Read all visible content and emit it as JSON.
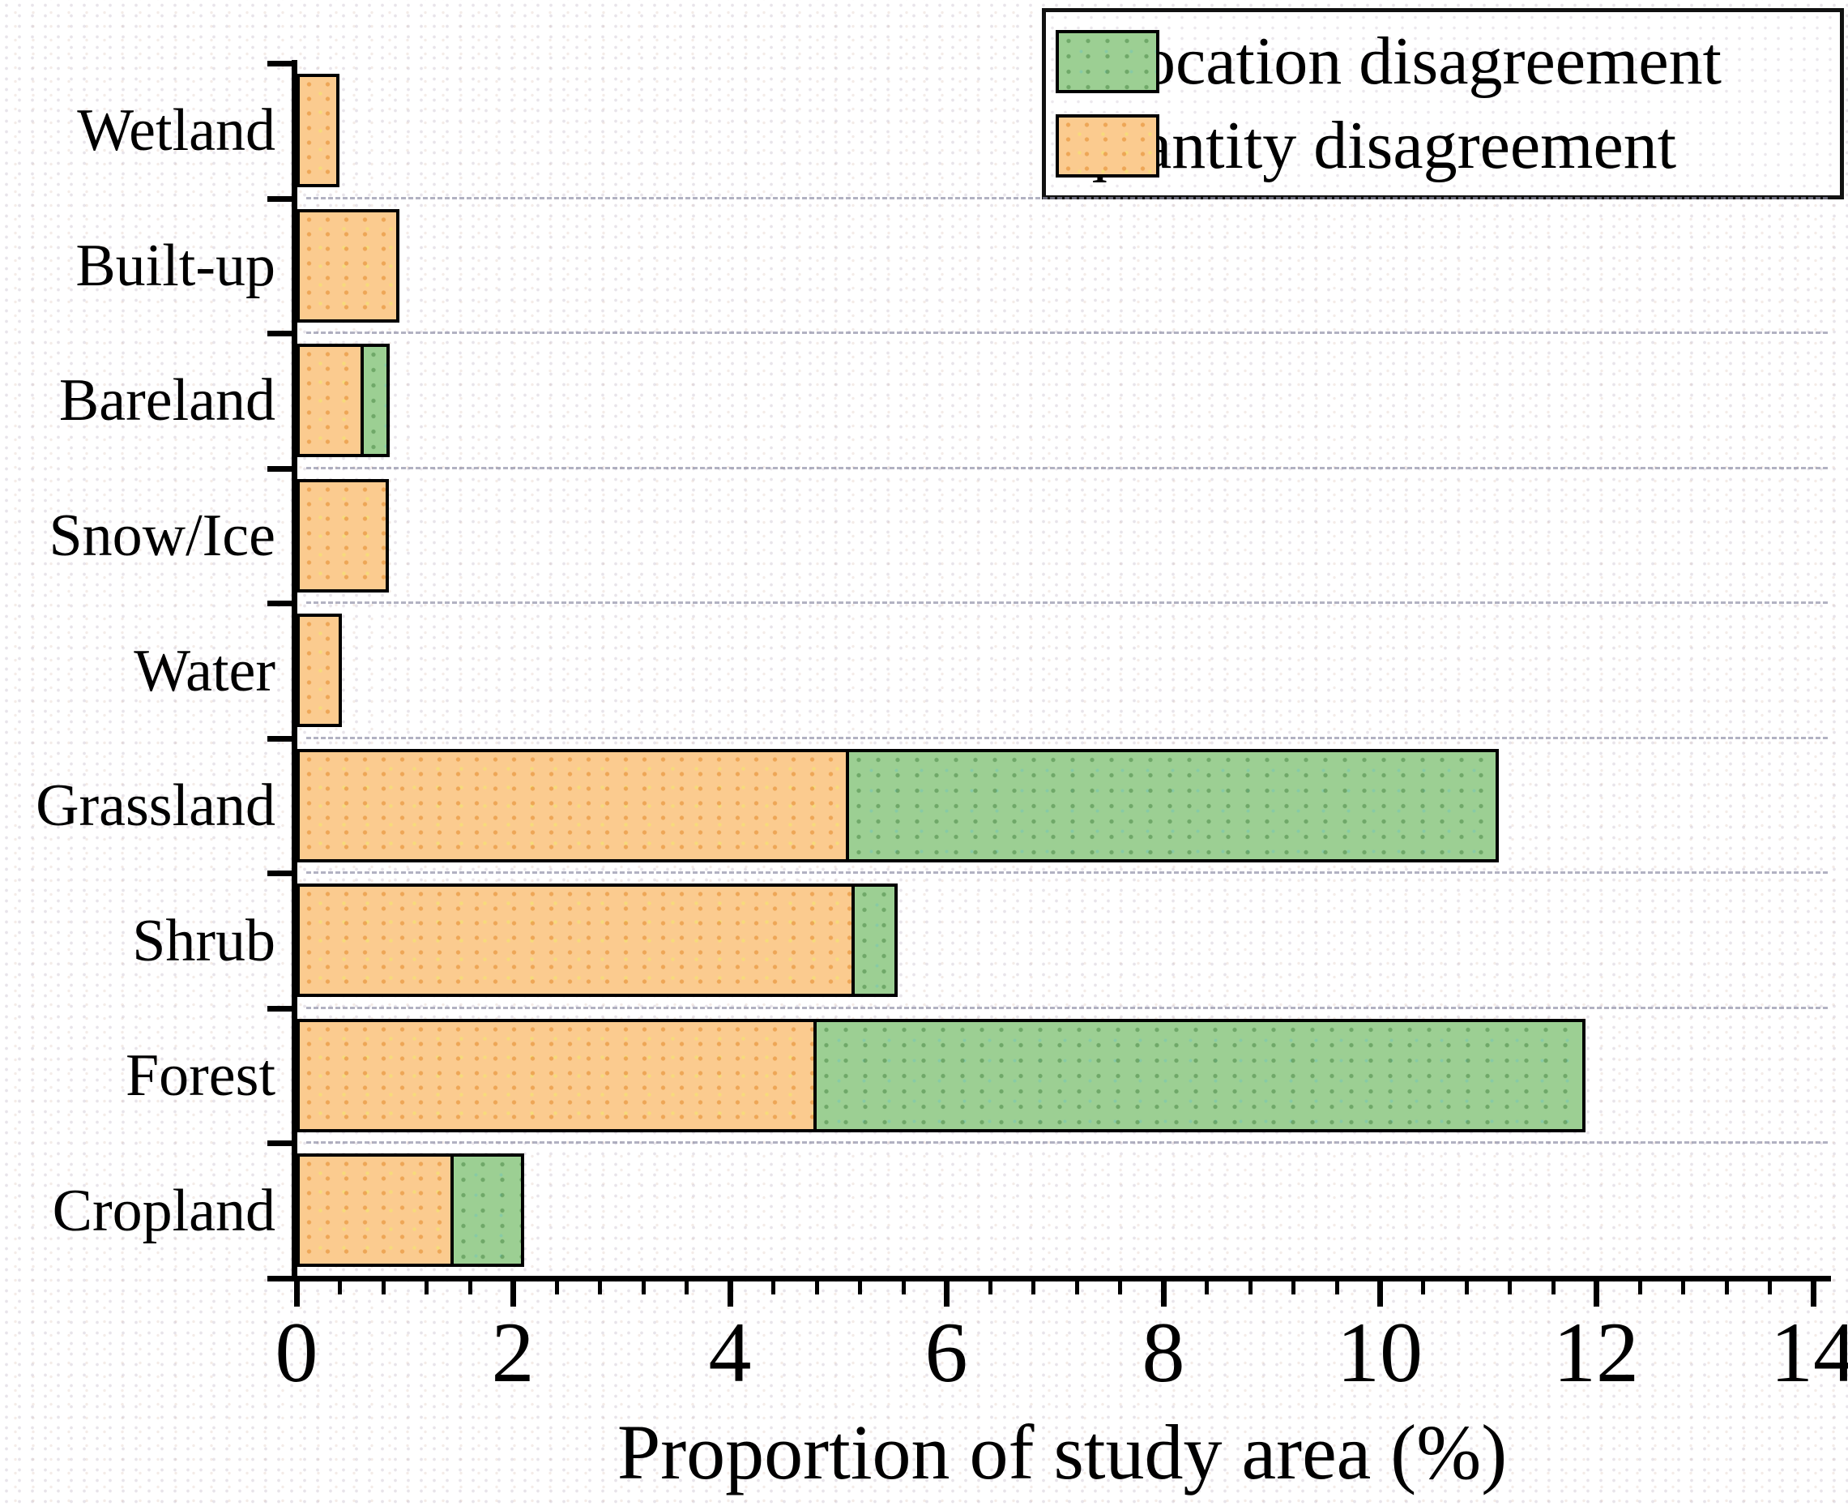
{
  "chart_data": {
    "type": "bar",
    "orientation": "horizontal",
    "stacked": true,
    "title": "",
    "xlabel": "Proportion of study area (%)",
    "ylabel": "",
    "categories_top_to_bottom": [
      "Wetland",
      "Built-up",
      "Bareland",
      "Snow/Ice",
      "Water",
      "Grassland",
      "Shrub",
      "Forest",
      "Cropland"
    ],
    "series": [
      {
        "name": "quantity disagreement",
        "color": "#FBCB8F",
        "values": [
          0.4,
          0.95,
          0.62,
          0.85,
          0.42,
          5.1,
          5.15,
          4.8,
          1.45
        ]
      },
      {
        "name": "allocation disagreement",
        "color": "#9CCF93",
        "values": [
          0,
          0,
          0.24,
          0,
          0,
          6.0,
          0.4,
          7.1,
          0.65
        ]
      }
    ],
    "stacked_totals": [
      0.4,
      0.95,
      0.86,
      0.85,
      0.42,
      11.1,
      5.55,
      11.9,
      2.1
    ],
    "xlim": [
      0,
      14
    ],
    "x_major_ticks": [
      0,
      2,
      4,
      6,
      8,
      10,
      12,
      14
    ],
    "x_minor_tick_step": 0.4,
    "grid": "dashed horizontal lines at category boundaries",
    "legend_position": "top-right",
    "legend": [
      {
        "label": "allocation disagreement",
        "color": "#9CCF93"
      },
      {
        "label": "quantity disagreement",
        "color": "#FBCB8F"
      }
    ],
    "colors": {
      "bar_border": "#000000",
      "axis": "#000000",
      "gridline": "#9292A8",
      "quantity_fill": "#FBCB8F",
      "allocation_fill": "#9CCF93"
    }
  }
}
